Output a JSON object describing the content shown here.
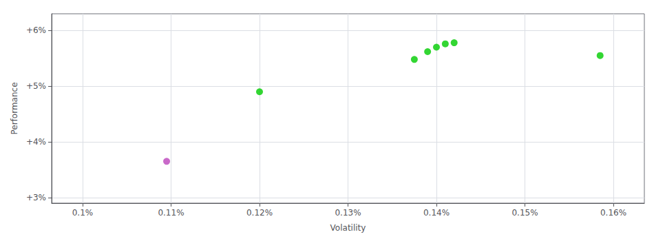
{
  "chart_data": {
    "type": "scatter",
    "xlabel": "Volatility",
    "ylabel": "Performance",
    "xlim": [
      0.0965,
      0.1635
    ],
    "ylim": [
      0.029,
      0.063
    ],
    "xticks": [
      {
        "value": 0.1,
        "label": "0.1%"
      },
      {
        "value": 0.11,
        "label": "0.11%"
      },
      {
        "value": 0.12,
        "label": "0.12%"
      },
      {
        "value": 0.13,
        "label": "0.13%"
      },
      {
        "value": 0.14,
        "label": "0.14%"
      },
      {
        "value": 0.15,
        "label": "0.15%"
      },
      {
        "value": 0.16,
        "label": "0.16%"
      }
    ],
    "yticks": [
      {
        "value": 0.03,
        "label": "+3%"
      },
      {
        "value": 0.04,
        "label": "+4%"
      },
      {
        "value": 0.05,
        "label": "+5%"
      },
      {
        "value": 0.06,
        "label": "+6%"
      }
    ],
    "grid": true,
    "series": [
      {
        "color": "#00cc00",
        "x": [
          0.12,
          0.1375,
          0.139,
          0.14,
          0.141,
          0.142,
          0.1585
        ],
        "values": [
          0.049,
          0.0548,
          0.0562,
          0.057,
          0.0576,
          0.0578,
          0.0555
        ]
      },
      {
        "color": "#bb44bb",
        "x": [
          0.1095
        ],
        "values": [
          0.0365
        ]
      }
    ]
  }
}
